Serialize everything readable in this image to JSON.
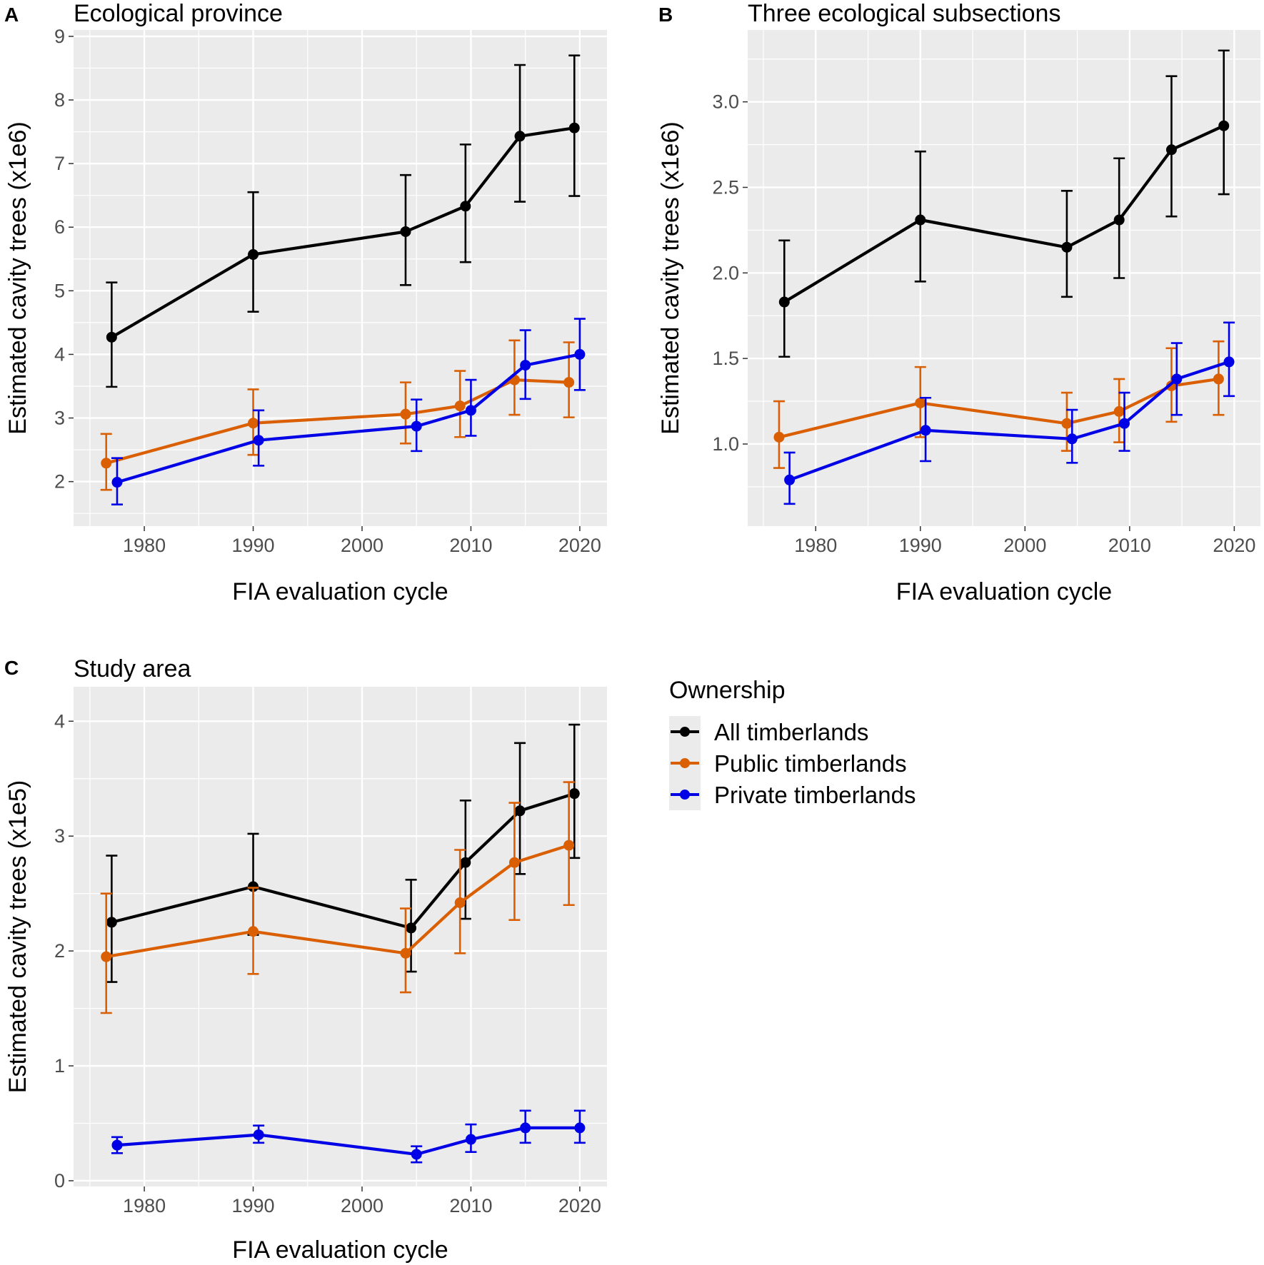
{
  "chart_data": [
    {
      "type": "line",
      "panel_letter": "A",
      "title": "Ecological province",
      "xlabel": "FIA evaluation cycle",
      "ylabel": "Estimated cavity trees (x1e6)",
      "xlim": [
        1973.5,
        2022.5
      ],
      "ylim": [
        1.3,
        9.1
      ],
      "xticks": [
        1980,
        1990,
        2000,
        2010,
        2020
      ],
      "xtick_labels": [
        "1980",
        "1990",
        "2000",
        "2010",
        "2020"
      ],
      "yticks": [
        2,
        3,
        4,
        5,
        6,
        7,
        8,
        9
      ],
      "ytick_labels": [
        "2",
        "3",
        "4",
        "5",
        "6",
        "7",
        "8",
        "9"
      ],
      "series": [
        {
          "name": "All timberlands",
          "color": "#000000",
          "x": [
            1977.0,
            1990.0,
            2004.0,
            2009.5,
            2014.5,
            2019.5
          ],
          "y": [
            4.27,
            5.57,
            5.93,
            6.33,
            7.43,
            7.56
          ],
          "lower": [
            3.49,
            4.67,
            5.09,
            5.45,
            6.4,
            6.49
          ],
          "upper": [
            5.13,
            6.55,
            6.82,
            7.3,
            8.55,
            8.7
          ]
        },
        {
          "name": "Public timberlands",
          "color": "#d95f02",
          "x": [
            1976.5,
            1990.0,
            2004.0,
            2009.0,
            2014.0,
            2019.0
          ],
          "y": [
            2.29,
            2.92,
            3.06,
            3.19,
            3.6,
            3.56
          ],
          "lower": [
            1.87,
            2.42,
            2.6,
            2.7,
            3.05,
            3.01
          ],
          "upper": [
            2.75,
            3.45,
            3.56,
            3.74,
            4.22,
            4.19
          ]
        },
        {
          "name": "Private timberlands",
          "color": "#0000e6",
          "x": [
            1977.5,
            1990.5,
            2005.0,
            2010.0,
            2015.0,
            2020.0
          ],
          "y": [
            1.99,
            2.65,
            2.87,
            3.12,
            3.83,
            4.0
          ],
          "lower": [
            1.64,
            2.25,
            2.48,
            2.72,
            3.3,
            3.44
          ],
          "upper": [
            2.37,
            3.12,
            3.29,
            3.6,
            4.38,
            4.56
          ]
        }
      ]
    },
    {
      "type": "line",
      "panel_letter": "B",
      "title": "Three ecological subsections",
      "xlabel": "FIA evaluation cycle",
      "ylabel": "Estimated cavity trees (x1e6)",
      "xlim": [
        1973.5,
        2022.5
      ],
      "ylim": [
        0.52,
        3.42
      ],
      "xticks": [
        1980,
        1990,
        2000,
        2010,
        2020
      ],
      "xtick_labels": [
        "1980",
        "1990",
        "2000",
        "2010",
        "2020"
      ],
      "yticks": [
        1.0,
        1.5,
        2.0,
        2.5,
        3.0
      ],
      "ytick_labels": [
        "1.0",
        "1.5",
        "2.0",
        "2.5",
        "3.0"
      ],
      "series": [
        {
          "name": "All timberlands",
          "color": "#000000",
          "x": [
            1977.0,
            1990.0,
            2004.0,
            2009.0,
            2014.0,
            2019.0
          ],
          "y": [
            1.83,
            2.31,
            2.15,
            2.31,
            2.72,
            2.86
          ],
          "lower": [
            1.51,
            1.95,
            1.86,
            1.97,
            2.33,
            2.46
          ],
          "upper": [
            2.19,
            2.71,
            2.48,
            2.67,
            3.15,
            3.3
          ]
        },
        {
          "name": "Public timberlands",
          "color": "#d95f02",
          "x": [
            1976.5,
            1990.0,
            2004.0,
            2009.0,
            2014.0,
            2018.5
          ],
          "y": [
            1.04,
            1.24,
            1.12,
            1.19,
            1.34,
            1.38
          ],
          "lower": [
            0.86,
            1.04,
            0.96,
            1.01,
            1.13,
            1.17
          ],
          "upper": [
            1.25,
            1.45,
            1.3,
            1.38,
            1.56,
            1.6
          ]
        },
        {
          "name": "Private timberlands",
          "color": "#0000e6",
          "x": [
            1977.5,
            1990.5,
            2004.5,
            2009.5,
            2014.5,
            2019.5
          ],
          "y": [
            0.79,
            1.08,
            1.03,
            1.12,
            1.38,
            1.48
          ],
          "lower": [
            0.65,
            0.9,
            0.89,
            0.96,
            1.17,
            1.28
          ],
          "upper": [
            0.95,
            1.27,
            1.2,
            1.3,
            1.59,
            1.71
          ]
        }
      ]
    },
    {
      "type": "line",
      "panel_letter": "C",
      "title": "Study area",
      "xlabel": "FIA evaluation cycle",
      "ylabel": "Estimated cavity trees (x1e5)",
      "xlim": [
        1973.5,
        2022.5
      ],
      "ylim": [
        -0.05,
        4.3
      ],
      "xticks": [
        1980,
        1990,
        2000,
        2010,
        2020
      ],
      "xtick_labels": [
        "1980",
        "1990",
        "2000",
        "2010",
        "2020"
      ],
      "yticks": [
        0,
        1,
        2,
        3,
        4
      ],
      "ytick_labels": [
        "0",
        "1",
        "2",
        "3",
        "4"
      ],
      "series": [
        {
          "name": "All timberlands",
          "color": "#000000",
          "x": [
            1977.0,
            1990.0,
            2004.5,
            2009.5,
            2014.5,
            2019.5
          ],
          "y": [
            2.25,
            2.56,
            2.2,
            2.77,
            3.22,
            3.37
          ],
          "lower": [
            1.73,
            2.14,
            1.82,
            2.28,
            2.67,
            2.81
          ],
          "upper": [
            2.83,
            3.02,
            2.62,
            3.31,
            3.81,
            3.97
          ]
        },
        {
          "name": "Public timberlands",
          "color": "#d95f02",
          "x": [
            1976.5,
            1990.0,
            2004.0,
            2009.0,
            2014.0,
            2019.0
          ],
          "y": [
            1.95,
            2.17,
            1.98,
            2.42,
            2.77,
            2.92
          ],
          "lower": [
            1.46,
            1.8,
            1.64,
            1.98,
            2.27,
            2.4
          ],
          "upper": [
            2.5,
            2.55,
            2.37,
            2.88,
            3.29,
            3.47
          ]
        },
        {
          "name": "Private timberlands",
          "color": "#0000e6",
          "x": [
            1977.5,
            1990.5,
            2005.0,
            2010.0,
            2015.0,
            2020.0
          ],
          "y": [
            0.31,
            0.4,
            0.23,
            0.36,
            0.46,
            0.46
          ],
          "lower": [
            0.24,
            0.33,
            0.16,
            0.25,
            0.33,
            0.33
          ],
          "upper": [
            0.38,
            0.48,
            0.3,
            0.49,
            0.61,
            0.61
          ]
        }
      ]
    }
  ],
  "legend": {
    "title": "Ownership",
    "items": [
      {
        "label": "All timberlands",
        "color": "#000000"
      },
      {
        "label": "Public timberlands",
        "color": "#d95f02"
      },
      {
        "label": "Private timberlands",
        "color": "#0000e6"
      }
    ]
  }
}
